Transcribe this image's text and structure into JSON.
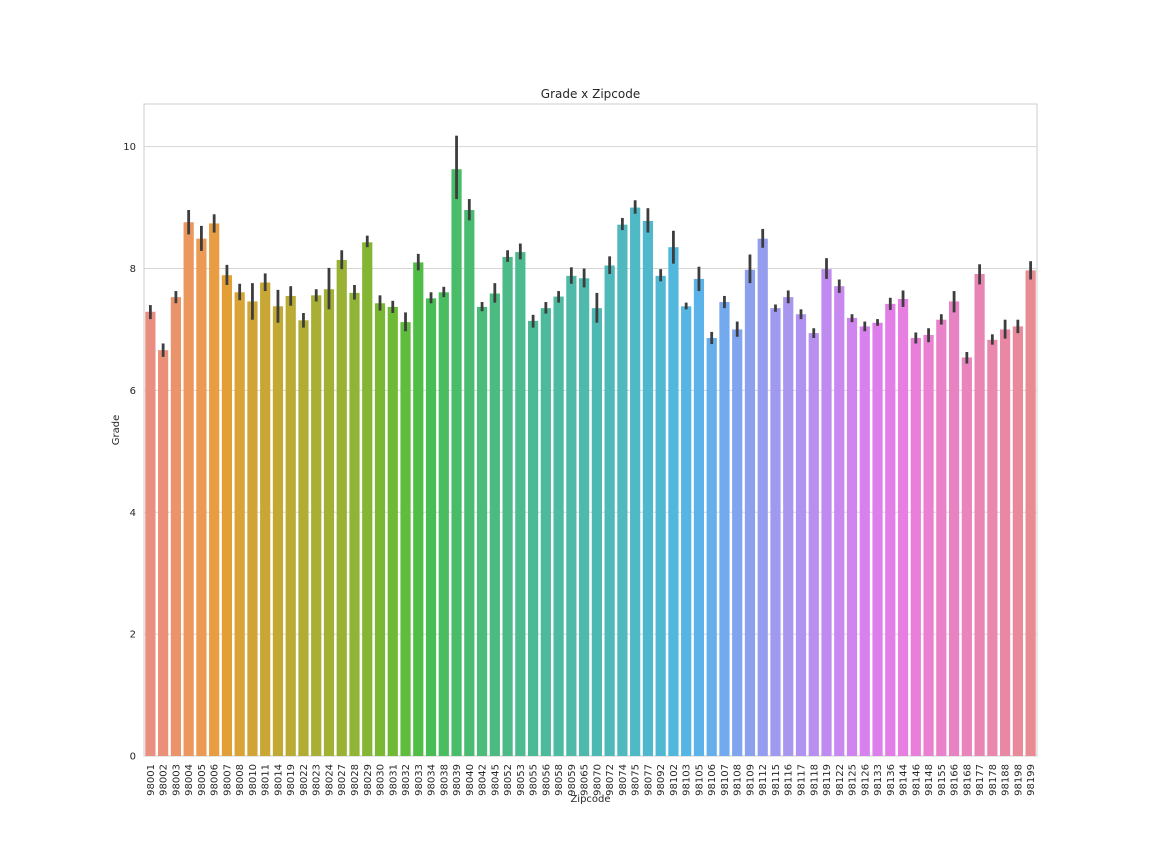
{
  "chart_data": {
    "type": "bar",
    "title": "Grade x Zipcode",
    "xlabel": "Zipcode",
    "ylabel": "Grade",
    "ylim": [
      0,
      10.7
    ],
    "yticks": [
      0,
      2,
      4,
      6,
      8,
      10
    ],
    "grid": "horizontal",
    "categories": [
      "98001",
      "98002",
      "98003",
      "98004",
      "98005",
      "98006",
      "98007",
      "98008",
      "98010",
      "98011",
      "98014",
      "98019",
      "98022",
      "98023",
      "98024",
      "98027",
      "98028",
      "98029",
      "98030",
      "98031",
      "98032",
      "98033",
      "98034",
      "98038",
      "98039",
      "98040",
      "98042",
      "98045",
      "98052",
      "98053",
      "98055",
      "98056",
      "98058",
      "98059",
      "98065",
      "98070",
      "98072",
      "98074",
      "98075",
      "98077",
      "98092",
      "98102",
      "98103",
      "98105",
      "98106",
      "98107",
      "98108",
      "98109",
      "98112",
      "98115",
      "98116",
      "98117",
      "98118",
      "98119",
      "98122",
      "98125",
      "98126",
      "98133",
      "98136",
      "98144",
      "98146",
      "98148",
      "98155",
      "98166",
      "98168",
      "98177",
      "98178",
      "98188",
      "98198",
      "98199"
    ],
    "values": [
      7.29,
      6.66,
      7.53,
      8.76,
      8.49,
      8.74,
      7.89,
      7.61,
      7.46,
      7.77,
      7.38,
      7.55,
      7.15,
      7.56,
      7.66,
      8.14,
      7.6,
      8.43,
      7.43,
      7.37,
      7.12,
      8.1,
      7.51,
      7.61,
      9.63,
      8.96,
      7.37,
      7.59,
      8.19,
      8.27,
      7.14,
      7.35,
      7.54,
      7.88,
      7.84,
      7.35,
      8.05,
      8.72,
      9.0,
      8.78,
      7.88,
      8.35,
      7.38,
      7.83,
      6.86,
      7.45,
      7.0,
      7.98,
      8.49,
      7.35,
      7.53,
      7.25,
      6.94,
      7.99,
      7.71,
      7.19,
      7.05,
      7.11,
      7.42,
      7.5,
      6.86,
      6.91,
      7.16,
      7.46,
      6.54,
      7.91,
      6.83,
      7.0,
      7.05,
      7.97
    ],
    "err_low": [
      7.17,
      6.55,
      7.43,
      8.56,
      8.29,
      8.59,
      7.73,
      7.48,
      7.16,
      7.63,
      7.11,
      7.39,
      7.03,
      7.46,
      7.33,
      7.99,
      7.49,
      8.35,
      7.31,
      7.27,
      6.97,
      7.97,
      7.43,
      7.53,
      9.14,
      8.79,
      7.3,
      7.44,
      8.11,
      8.15,
      7.03,
      7.26,
      7.44,
      7.75,
      7.69,
      7.11,
      7.91,
      8.63,
      8.9,
      8.59,
      7.79,
      8.08,
      7.33,
      7.63,
      6.76,
      7.35,
      6.88,
      7.76,
      8.34,
      7.29,
      7.43,
      7.17,
      6.86,
      7.83,
      7.6,
      7.12,
      6.97,
      7.06,
      7.32,
      7.37,
      6.77,
      6.79,
      7.08,
      7.28,
      6.44,
      7.74,
      6.75,
      6.85,
      6.94,
      7.82
    ],
    "err_high": [
      7.4,
      6.77,
      7.63,
      8.96,
      8.7,
      8.89,
      8.06,
      7.75,
      7.76,
      7.92,
      7.65,
      7.71,
      7.27,
      7.66,
      8.01,
      8.3,
      7.73,
      8.54,
      7.56,
      7.47,
      7.28,
      8.24,
      7.61,
      7.7,
      10.18,
      9.14,
      7.45,
      7.76,
      8.3,
      8.41,
      7.24,
      7.45,
      7.63,
      8.02,
      8.0,
      7.6,
      8.2,
      8.83,
      9.12,
      8.99,
      7.99,
      8.62,
      7.44,
      8.03,
      6.96,
      7.55,
      7.13,
      8.23,
      8.65,
      7.41,
      7.64,
      7.33,
      7.02,
      8.17,
      7.82,
      7.25,
      7.13,
      7.17,
      7.52,
      7.64,
      6.95,
      7.02,
      7.25,
      7.63,
      6.63,
      8.07,
      6.92,
      7.16,
      7.16,
      8.12
    ],
    "colors": [
      "#ea8f80",
      "#eb9078",
      "#eb946b",
      "#eb975e",
      "#ea9a52",
      "#e99d43",
      "#e29f35",
      "#d9a335",
      "#d1a535",
      "#c8a734",
      "#c1a934",
      "#b9ab34",
      "#b1ad34",
      "#a8af34",
      "#a2b034",
      "#99b234",
      "#90b434",
      "#85b633",
      "#7ab834",
      "#6eba34",
      "#5fbc3c",
      "#50bd47",
      "#49bd55",
      "#49bd60",
      "#49bc6a",
      "#4abc72",
      "#4bbc7a",
      "#4bbb81",
      "#4cbb88",
      "#4cbb8f",
      "#4cba95",
      "#4dba9b",
      "#4dbaa1",
      "#4ebaa7",
      "#4ebaad",
      "#4eb9b3",
      "#4fb9b9",
      "#4fb9bf",
      "#50b9c6",
      "#50b8cd",
      "#51b8d4",
      "#52b7dc",
      "#55b6e3",
      "#5bb3ea",
      "#66aeec",
      "#73a9ee",
      "#80a5ee",
      "#8ba1ee",
      "#959def",
      "#9f99ef",
      "#a896ef",
      "#b092f0",
      "#b88ef0",
      "#bf8bf0",
      "#c788f0",
      "#cf84f0",
      "#d681ee",
      "#dd7eec",
      "#e37de7",
      "#e77ee2",
      "#e97fda",
      "#e980d2",
      "#e981cb",
      "#e982c3",
      "#e984bc",
      "#e985b4",
      "#e987ad",
      "#e988a4",
      "#e98a9b",
      "#e98b92"
    ],
    "error_color": "#3d3d3d"
  }
}
